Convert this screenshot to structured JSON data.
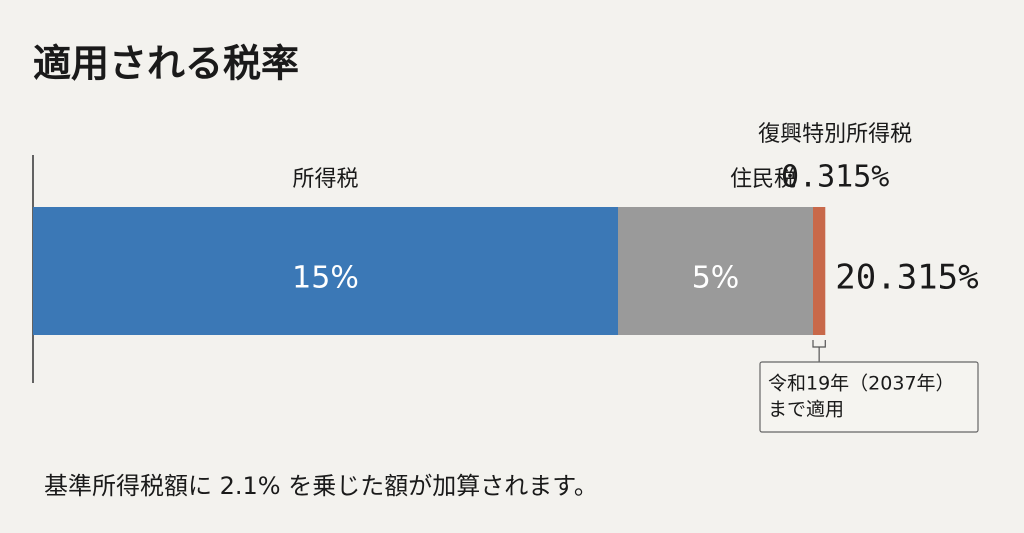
{
  "chart_data": {
    "type": "stacked-bar",
    "orientation": "horizontal",
    "title": "適用される税率",
    "series": [
      {
        "name": "所得税",
        "color": "#3b78b6",
        "values": [
          15
        ],
        "value_labels": [
          "15%"
        ]
      },
      {
        "name": "住民税",
        "color": "#9a9a9a",
        "values": [
          5
        ],
        "value_labels": [
          "5%"
        ]
      },
      {
        "name": "復興特別所得税",
        "color": "#c8694a",
        "values": [
          0.315
        ],
        "value_labels": [
          "0.315%"
        ]
      }
    ],
    "total": 20.315,
    "total_label": "20.315%",
    "annotation": [
      "令和19年（2037年）",
      "まで適用"
    ],
    "footnote": "基準所得税額に 2.1% を乗じた額が加算されます。"
  }
}
